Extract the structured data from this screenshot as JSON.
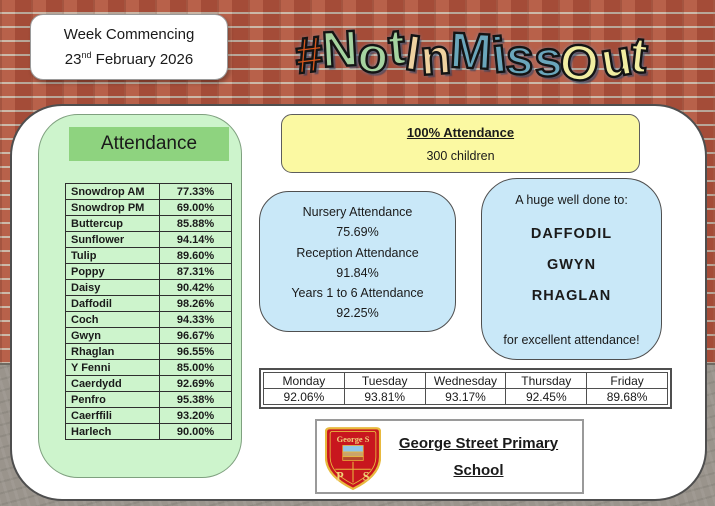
{
  "week_box": {
    "line1": "Week Commencing",
    "date_day": "23",
    "date_ordinal": "nd",
    "date_rest": " February 2026"
  },
  "title": {
    "text": "#NotInMissOut",
    "letters": [
      {
        "ch": "#",
        "color": "#d7571d"
      },
      {
        "ch": "N",
        "color": "#a5d3a0"
      },
      {
        "ch": "o",
        "color": "#a5d3a0"
      },
      {
        "ch": "t",
        "color": "#a5d3a0"
      },
      {
        "ch": "I",
        "color": "#eed2a0"
      },
      {
        "ch": "n",
        "color": "#eed2a0"
      },
      {
        "ch": "M",
        "color": "#6aa6bb"
      },
      {
        "ch": "i",
        "color": "#6aa6bb"
      },
      {
        "ch": "s",
        "color": "#6aa6bb"
      },
      {
        "ch": "s",
        "color": "#6aa6bb"
      },
      {
        "ch": "O",
        "color": "#f1eda1"
      },
      {
        "ch": "u",
        "color": "#f1eda1"
      },
      {
        "ch": "t",
        "color": "#f1eda1"
      }
    ]
  },
  "attendance_panel": {
    "title": "Attendance",
    "rows": [
      {
        "name": "Snowdrop AM",
        "value": "77.33%"
      },
      {
        "name": "Snowdrop PM",
        "value": "69.00%"
      },
      {
        "name": "Buttercup",
        "value": "85.88%"
      },
      {
        "name": "Sunflower",
        "value": "94.14%"
      },
      {
        "name": "Tulip",
        "value": "89.60%"
      },
      {
        "name": "Poppy",
        "value": "87.31%"
      },
      {
        "name": "Daisy",
        "value": "90.42%"
      },
      {
        "name": "Daffodil",
        "value": "98.26%"
      },
      {
        "name": "Coch",
        "value": "94.33%"
      },
      {
        "name": "Gwyn",
        "value": "96.67%"
      },
      {
        "name": "Rhaglan",
        "value": "96.55%"
      },
      {
        "name": "Y Fenni",
        "value": "85.00%"
      },
      {
        "name": "Caerdydd",
        "value": "92.69%"
      },
      {
        "name": "Penfro",
        "value": "95.38%"
      },
      {
        "name": "Caerffili",
        "value": "93.20%"
      },
      {
        "name": "Harlech",
        "value": "90.00%"
      }
    ]
  },
  "hundred_box": {
    "title": "100% Attendance",
    "subtitle": "300 children"
  },
  "phase_box": {
    "lines": [
      "Nursery Attendance",
      "75.69%",
      "Reception Attendance",
      "91.84%",
      "Years 1 to 6 Attendance",
      "92.25%"
    ]
  },
  "welldone_box": {
    "intro": "A huge well done to:",
    "classes": [
      "DAFFODIL",
      "GWYN",
      "RHAGLAN"
    ],
    "outro": "for excellent attendance!"
  },
  "daily_table": {
    "days": [
      "Monday",
      "Tuesday",
      "Wednesday",
      "Thursday",
      "Friday"
    ],
    "values": [
      "92.06%",
      "93.81%",
      "93.17%",
      "92.45%",
      "89.68%"
    ]
  },
  "school": {
    "name_line1": "George Street Primary",
    "name_line2": "School",
    "crest_top": "George S",
    "crest_p": "P",
    "crest_s": "S"
  },
  "colors": {
    "brick": "#b0523c",
    "pavement": "#9a948c",
    "panel_green": "#cdf4cc",
    "header_green": "#8ed37f",
    "box_yellow": "#fbf9a2",
    "box_blue": "#c9e8f8",
    "crest_red": "#c8161e",
    "crest_gold": "#e8b93e"
  }
}
